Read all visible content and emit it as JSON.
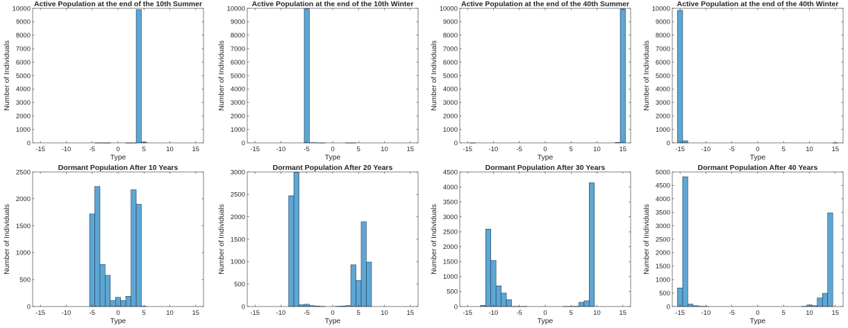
{
  "figure": {
    "bar_color": "#5ea6d3",
    "bar_edge_color": "#1a3a55",
    "axes_color": "#262626",
    "background": "#ffffff"
  },
  "chart_data": [
    {
      "type": "bar",
      "title": "Active Population at the end of the 10th Summer",
      "xlabel": "Type",
      "ylabel": "Number of Individuals",
      "xlim": [
        -16.5,
        16.5
      ],
      "ylim": [
        0,
        10000
      ],
      "xticks": [
        -15,
        -10,
        -5,
        0,
        5,
        10,
        15
      ],
      "yticks": [
        0,
        1000,
        2000,
        3000,
        4000,
        5000,
        6000,
        7000,
        8000,
        9000,
        10000
      ],
      "bin_width": 1,
      "bins": [
        -15,
        -14,
        -13,
        -12,
        -11,
        -10,
        -9,
        -8,
        -7,
        -6,
        -5,
        -4,
        -3,
        -2,
        -1,
        0,
        1,
        2,
        3,
        4,
        5,
        6,
        7,
        8,
        9,
        10,
        11,
        12,
        13,
        14,
        15
      ],
      "values": [
        0,
        0,
        0,
        0,
        0,
        0,
        0,
        0,
        0,
        0,
        0,
        5,
        5,
        2,
        0,
        0,
        0,
        2,
        5,
        9900,
        60,
        0,
        0,
        0,
        0,
        0,
        0,
        0,
        0,
        0,
        0
      ]
    },
    {
      "type": "bar",
      "title": "Active Population at the end of the 10th Winter",
      "xlabel": "Type",
      "ylabel": "Number of Individuals",
      "xlim": [
        -16.5,
        16.5
      ],
      "ylim": [
        0,
        10000
      ],
      "xticks": [
        -15,
        -10,
        -5,
        0,
        5,
        10,
        15
      ],
      "yticks": [
        0,
        1000,
        2000,
        3000,
        4000,
        5000,
        6000,
        7000,
        8000,
        9000,
        10000
      ],
      "bin_width": 1,
      "bins": [
        -15,
        -14,
        -13,
        -12,
        -11,
        -10,
        -9,
        -8,
        -7,
        -6,
        -5,
        -4,
        -3,
        -2,
        -1,
        0,
        1,
        2,
        3,
        4,
        5,
        6,
        7,
        8,
        9,
        10,
        11,
        12,
        13,
        14,
        15
      ],
      "values": [
        0,
        0,
        0,
        0,
        0,
        0,
        0,
        0,
        0,
        0,
        9990,
        20,
        10,
        5,
        0,
        0,
        0,
        0,
        5,
        5,
        0,
        0,
        0,
        0,
        0,
        0,
        0,
        0,
        0,
        0,
        0
      ]
    },
    {
      "type": "bar",
      "title": "Active Population at the end of the 40th Summer",
      "xlabel": "Type",
      "ylabel": "Number of Individuals",
      "xlim": [
        -16.5,
        16.5
      ],
      "ylim": [
        0,
        10000
      ],
      "xticks": [
        -15,
        -10,
        -5,
        0,
        5,
        10,
        15
      ],
      "yticks": [
        0,
        1000,
        2000,
        3000,
        4000,
        5000,
        6000,
        7000,
        8000,
        9000,
        10000
      ],
      "bin_width": 1,
      "bins": [
        -15,
        -14,
        -13,
        -12,
        -11,
        -10,
        -9,
        -8,
        -7,
        -6,
        -5,
        -4,
        -3,
        -2,
        -1,
        0,
        1,
        2,
        3,
        4,
        5,
        6,
        7,
        8,
        9,
        10,
        11,
        12,
        13,
        14,
        15
      ],
      "values": [
        0,
        5,
        0,
        0,
        0,
        0,
        0,
        0,
        0,
        0,
        0,
        0,
        0,
        0,
        0,
        0,
        0,
        0,
        0,
        0,
        0,
        0,
        0,
        0,
        0,
        0,
        0,
        0,
        0,
        30,
        9950
      ]
    },
    {
      "type": "bar",
      "title": "Active Population at the end of the 40th Winter",
      "xlabel": "Type",
      "ylabel": "Number of Individuals",
      "xlim": [
        -16.5,
        16.5
      ],
      "ylim": [
        0,
        10000
      ],
      "xticks": [
        -15,
        -10,
        -5,
        0,
        5,
        10,
        15
      ],
      "yticks": [
        0,
        1000,
        2000,
        3000,
        4000,
        5000,
        6000,
        7000,
        8000,
        9000,
        10000
      ],
      "bin_width": 1,
      "bins": [
        -15,
        -14,
        -13,
        -12,
        -11,
        -10,
        -9,
        -8,
        -7,
        -6,
        -5,
        -4,
        -3,
        -2,
        -1,
        0,
        1,
        2,
        3,
        4,
        5,
        6,
        7,
        8,
        9,
        10,
        11,
        12,
        13,
        14,
        15
      ],
      "values": [
        9850,
        150,
        0,
        0,
        0,
        0,
        0,
        0,
        0,
        0,
        0,
        0,
        0,
        0,
        0,
        0,
        0,
        0,
        0,
        0,
        0,
        0,
        0,
        0,
        0,
        0,
        0,
        0,
        0,
        0,
        5
      ]
    },
    {
      "type": "bar",
      "title": "Dormant Population After 10 Years",
      "xlabel": "Type",
      "ylabel": "Number of Individuals",
      "xlim": [
        -16.5,
        16.5
      ],
      "ylim": [
        0,
        2500
      ],
      "xticks": [
        -15,
        -10,
        -5,
        0,
        5,
        10,
        15
      ],
      "yticks": [
        0,
        500,
        1000,
        1500,
        2000,
        2500
      ],
      "bin_width": 1,
      "bins": [
        -15,
        -14,
        -13,
        -12,
        -11,
        -10,
        -9,
        -8,
        -7,
        -6,
        -5,
        -4,
        -3,
        -2,
        -1,
        0,
        1,
        2,
        3,
        4,
        5,
        6,
        7,
        8,
        9,
        10,
        11,
        12,
        13,
        14,
        15
      ],
      "values": [
        0,
        0,
        0,
        0,
        0,
        0,
        0,
        0,
        0,
        0,
        1720,
        2230,
        780,
        580,
        110,
        170,
        110,
        190,
        2170,
        1900,
        5,
        0,
        0,
        0,
        0,
        0,
        0,
        0,
        0,
        0,
        0
      ]
    },
    {
      "type": "bar",
      "title": "Dormant Population After 20 Years",
      "xlabel": "Type",
      "ylabel": "Number of Individuals",
      "xlim": [
        -16.5,
        16.5
      ],
      "ylim": [
        0,
        3000
      ],
      "xticks": [
        -15,
        -10,
        -5,
        0,
        5,
        10,
        15
      ],
      "yticks": [
        0,
        500,
        1000,
        1500,
        2000,
        2500,
        3000
      ],
      "bin_width": 1,
      "bins": [
        -15,
        -14,
        -13,
        -12,
        -11,
        -10,
        -9,
        -8,
        -7,
        -6,
        -5,
        -4,
        -3,
        -2,
        -1,
        0,
        1,
        2,
        3,
        4,
        5,
        6,
        7,
        8,
        9,
        10,
        11,
        12,
        13,
        14,
        15
      ],
      "values": [
        0,
        0,
        0,
        0,
        0,
        0,
        0,
        2470,
        2990,
        40,
        50,
        20,
        10,
        5,
        0,
        0,
        5,
        10,
        20,
        930,
        580,
        1890,
        990,
        0,
        0,
        0,
        0,
        0,
        0,
        0,
        0
      ]
    },
    {
      "type": "bar",
      "title": "Dormant Population After 30 Years",
      "xlabel": "Type",
      "ylabel": "Number of Individuals",
      "xlim": [
        -16.5,
        16.5
      ],
      "ylim": [
        0,
        4500
      ],
      "xticks": [
        -15,
        -10,
        -5,
        0,
        5,
        10,
        15
      ],
      "yticks": [
        0,
        500,
        1000,
        1500,
        2000,
        2500,
        3000,
        3500,
        4000,
        4500
      ],
      "bin_width": 1,
      "bins": [
        -15,
        -14,
        -13,
        -12,
        -11,
        -10,
        -9,
        -8,
        -7,
        -6,
        -5,
        -4,
        -3,
        -2,
        -1,
        0,
        1,
        2,
        3,
        4,
        5,
        6,
        7,
        8,
        9,
        10,
        11,
        12,
        13,
        14,
        15
      ],
      "values": [
        0,
        0,
        0,
        40,
        2590,
        1540,
        690,
        450,
        230,
        5,
        5,
        5,
        0,
        0,
        0,
        0,
        0,
        0,
        0,
        5,
        5,
        10,
        140,
        190,
        4140,
        0,
        0,
        0,
        0,
        0,
        0
      ]
    },
    {
      "type": "bar",
      "title": "Dormant Population After 40 Years",
      "xlabel": "Type",
      "ylabel": "Number of Individuals",
      "xlim": [
        -16.5,
        16.5
      ],
      "ylim": [
        0,
        5000
      ],
      "xticks": [
        -15,
        -10,
        -5,
        0,
        5,
        10,
        15
      ],
      "yticks": [
        0,
        500,
        1000,
        1500,
        2000,
        2500,
        3000,
        3500,
        4000,
        4500,
        5000
      ],
      "bin_width": 1,
      "bins": [
        -15,
        -14,
        -13,
        -12,
        -11,
        -10,
        -9,
        -8,
        -7,
        -6,
        -5,
        -4,
        -3,
        -2,
        -1,
        0,
        1,
        2,
        3,
        4,
        5,
        6,
        7,
        8,
        9,
        10,
        11,
        12,
        13,
        14,
        15
      ],
      "values": [
        690,
        4820,
        90,
        30,
        10,
        5,
        0,
        0,
        0,
        0,
        0,
        0,
        0,
        0,
        0,
        0,
        0,
        0,
        0,
        0,
        0,
        0,
        0,
        0,
        10,
        60,
        30,
        320,
        490,
        3480,
        0
      ]
    }
  ]
}
